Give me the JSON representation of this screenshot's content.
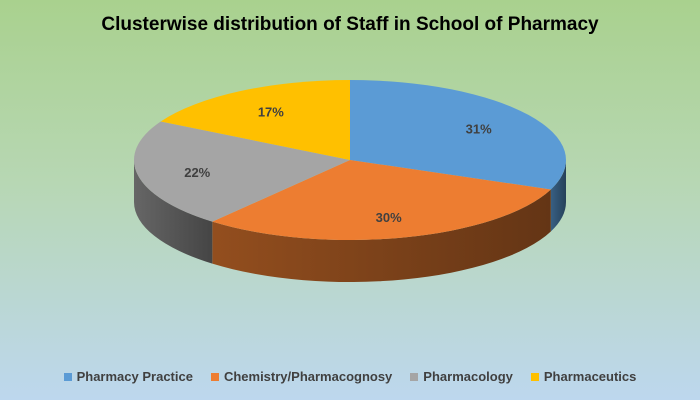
{
  "chart_data": {
    "type": "pie",
    "title": "Clusterwise distribution of Staff in School of Pharmacy",
    "categories": [
      "Pharmacy Practice",
      "Chemistry/Pharmacognosy",
      "Pharmacology",
      "Pharmaceutics"
    ],
    "values": [
      31,
      30,
      22,
      17
    ],
    "labels": [
      "31%",
      "30%",
      "22%",
      "17%"
    ],
    "colors": [
      "#5b9bd5",
      "#ed7d31",
      "#a5a5a5",
      "#ffc000"
    ],
    "legend_position": "bottom",
    "style": "3d"
  }
}
